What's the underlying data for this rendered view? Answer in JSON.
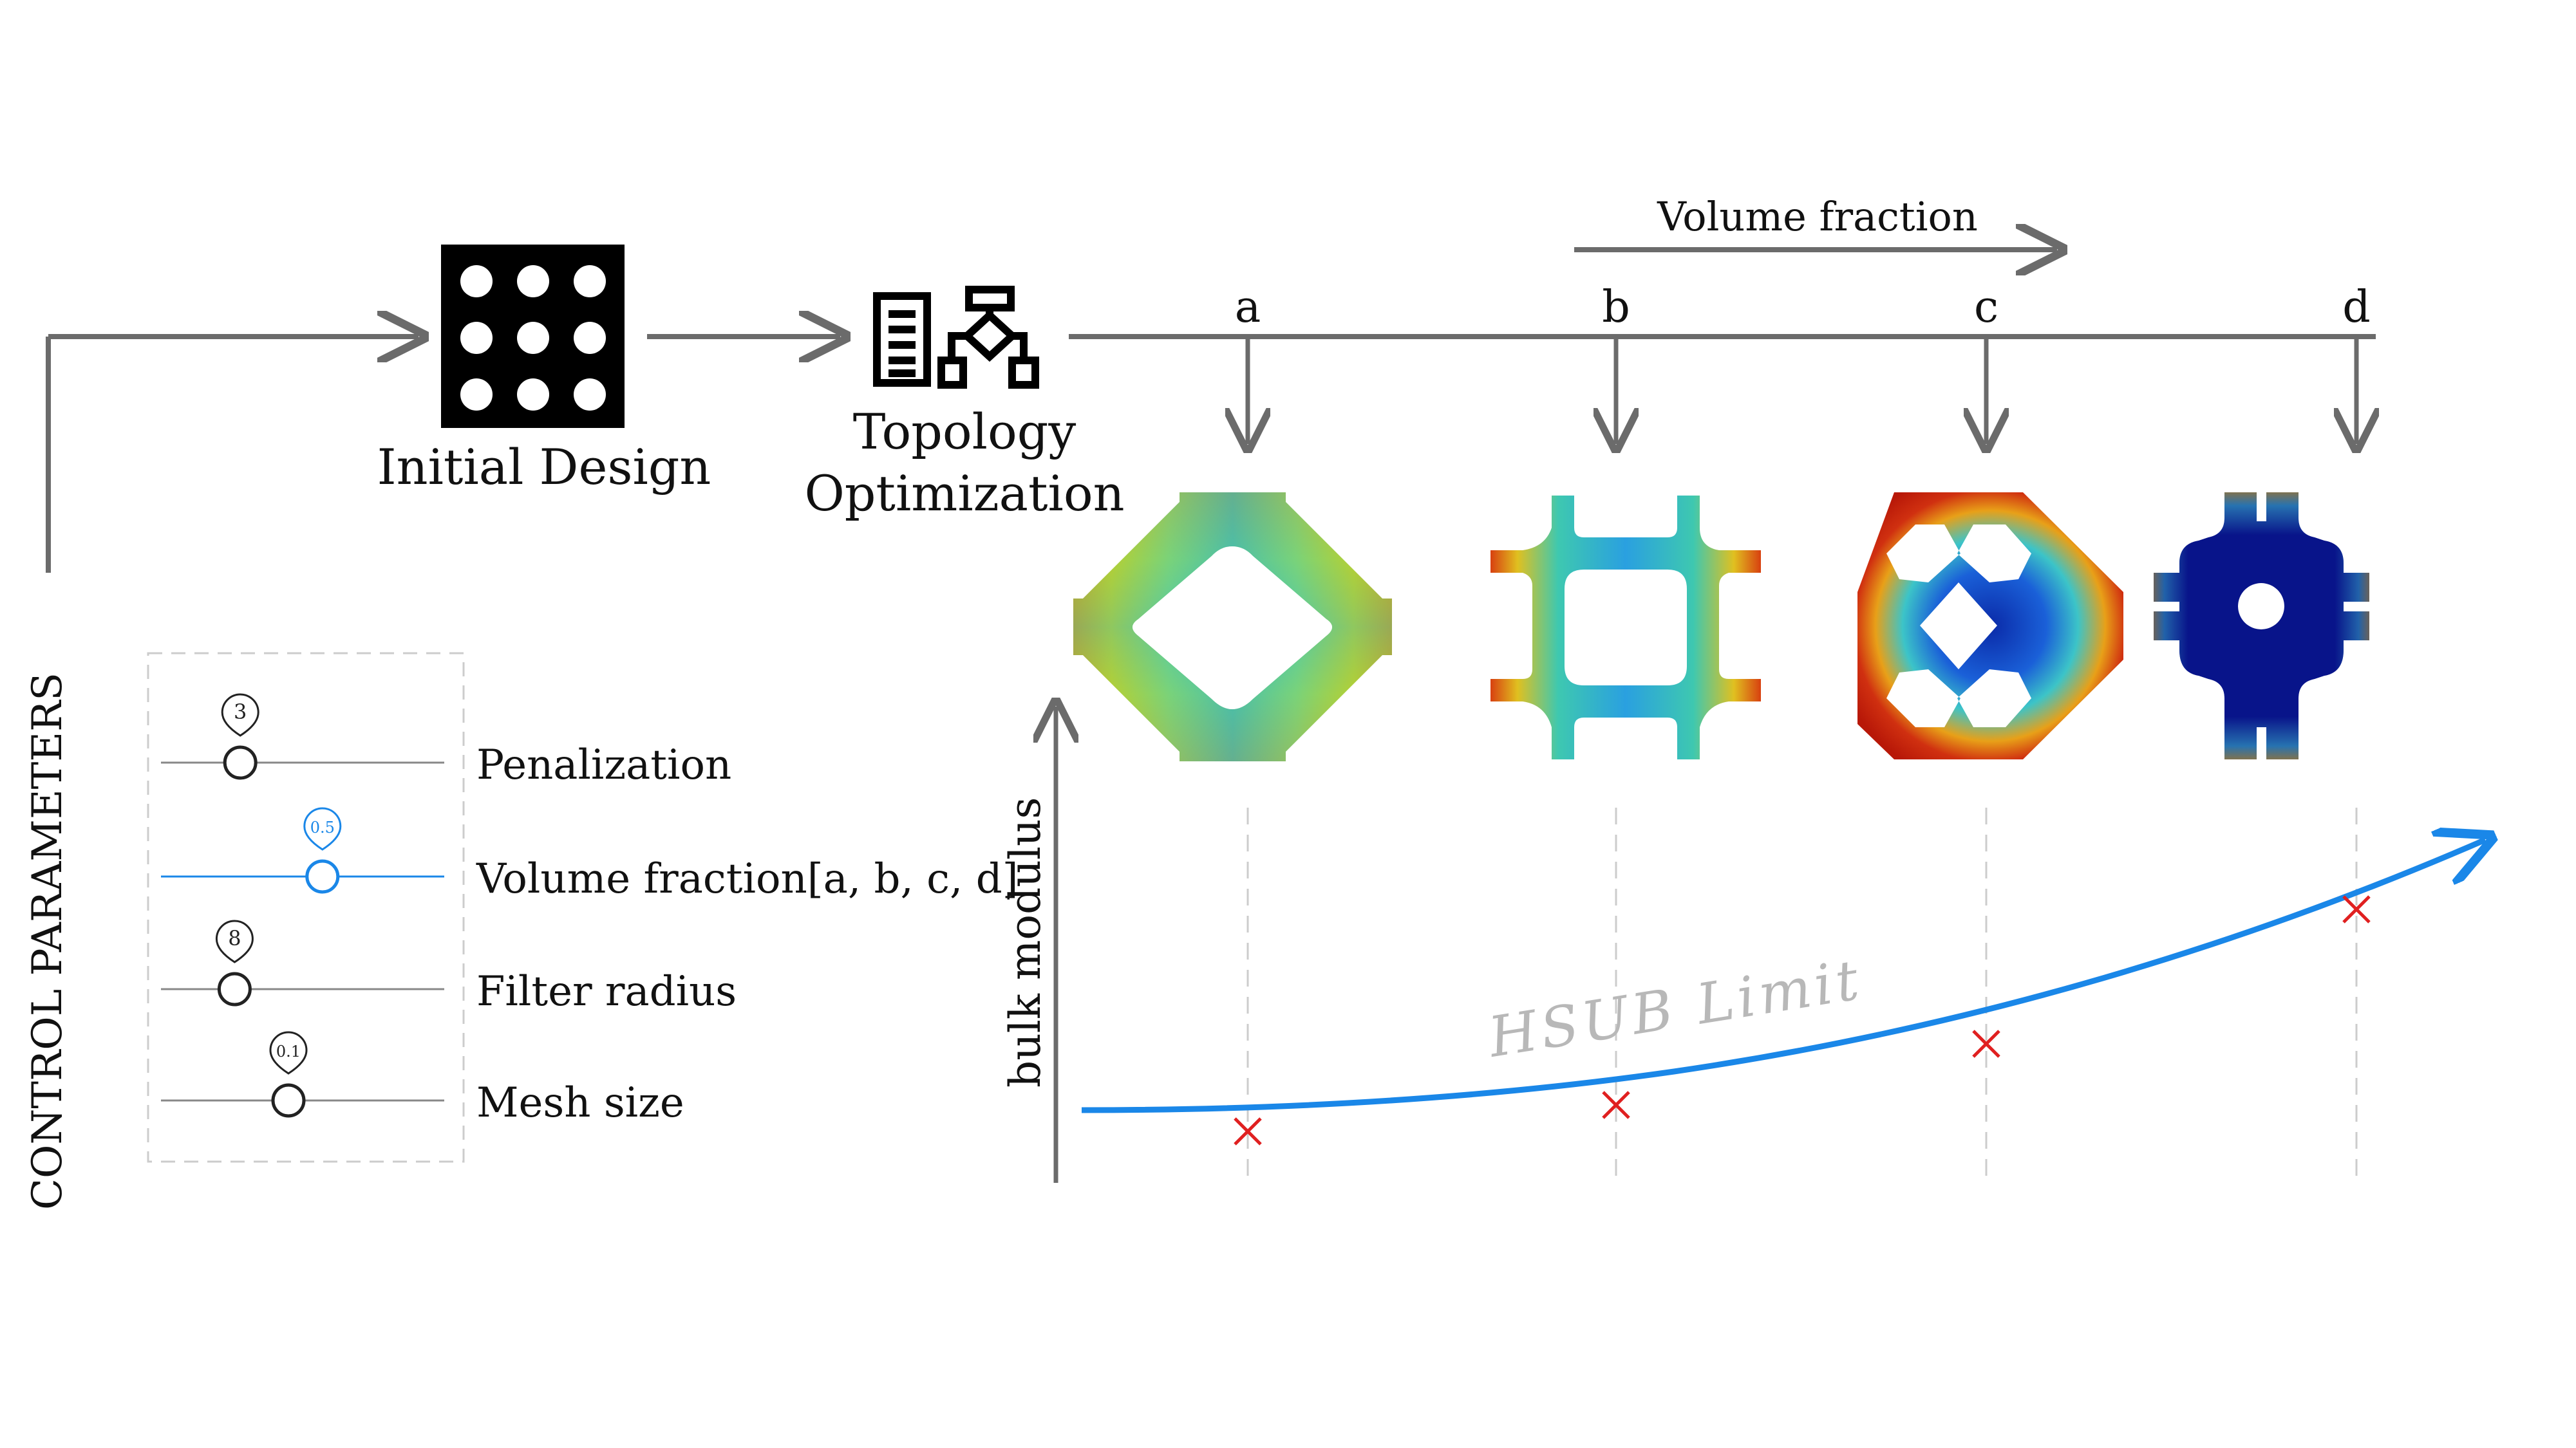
{
  "control_panel": {
    "heading": "CONTROL PARAMETERS",
    "sliders": [
      {
        "label": "Penalization",
        "value": "3",
        "fraction": 0.28,
        "active": false
      },
      {
        "label": "Volume fraction[a, b, c, d]",
        "value": "0.5",
        "fraction": 0.57,
        "active": true
      },
      {
        "label": "Filter radius",
        "value": "8",
        "fraction": 0.26,
        "active": false
      },
      {
        "label": "Mesh size",
        "value": "0.1",
        "fraction": 0.45,
        "active": false
      }
    ]
  },
  "pipeline": {
    "initial_design_label": "Initial Design",
    "topology_label_line1": "Topology",
    "topology_label_line2": "Optimization",
    "volume_fraction_arrow_label": "Volume fraction",
    "designs": [
      "a",
      "b",
      "c",
      "d"
    ]
  },
  "chart": {
    "ylabel": "bulk modulus",
    "curve_label": "HSUB Limit"
  },
  "colors": {
    "arrow_gray": "#6b6b6b",
    "accent_blue": "#1a87e8",
    "marker_red": "#e02020",
    "curve_label_gray": "#b8b8b8",
    "dashed_gray": "#cccccc",
    "jet_low": "#00107a",
    "jet_mid": "#21c7c8",
    "jet_high": "#c81e0a"
  },
  "icons": [
    "grid-holes-icon",
    "document-icon",
    "flowchart-icon"
  ]
}
